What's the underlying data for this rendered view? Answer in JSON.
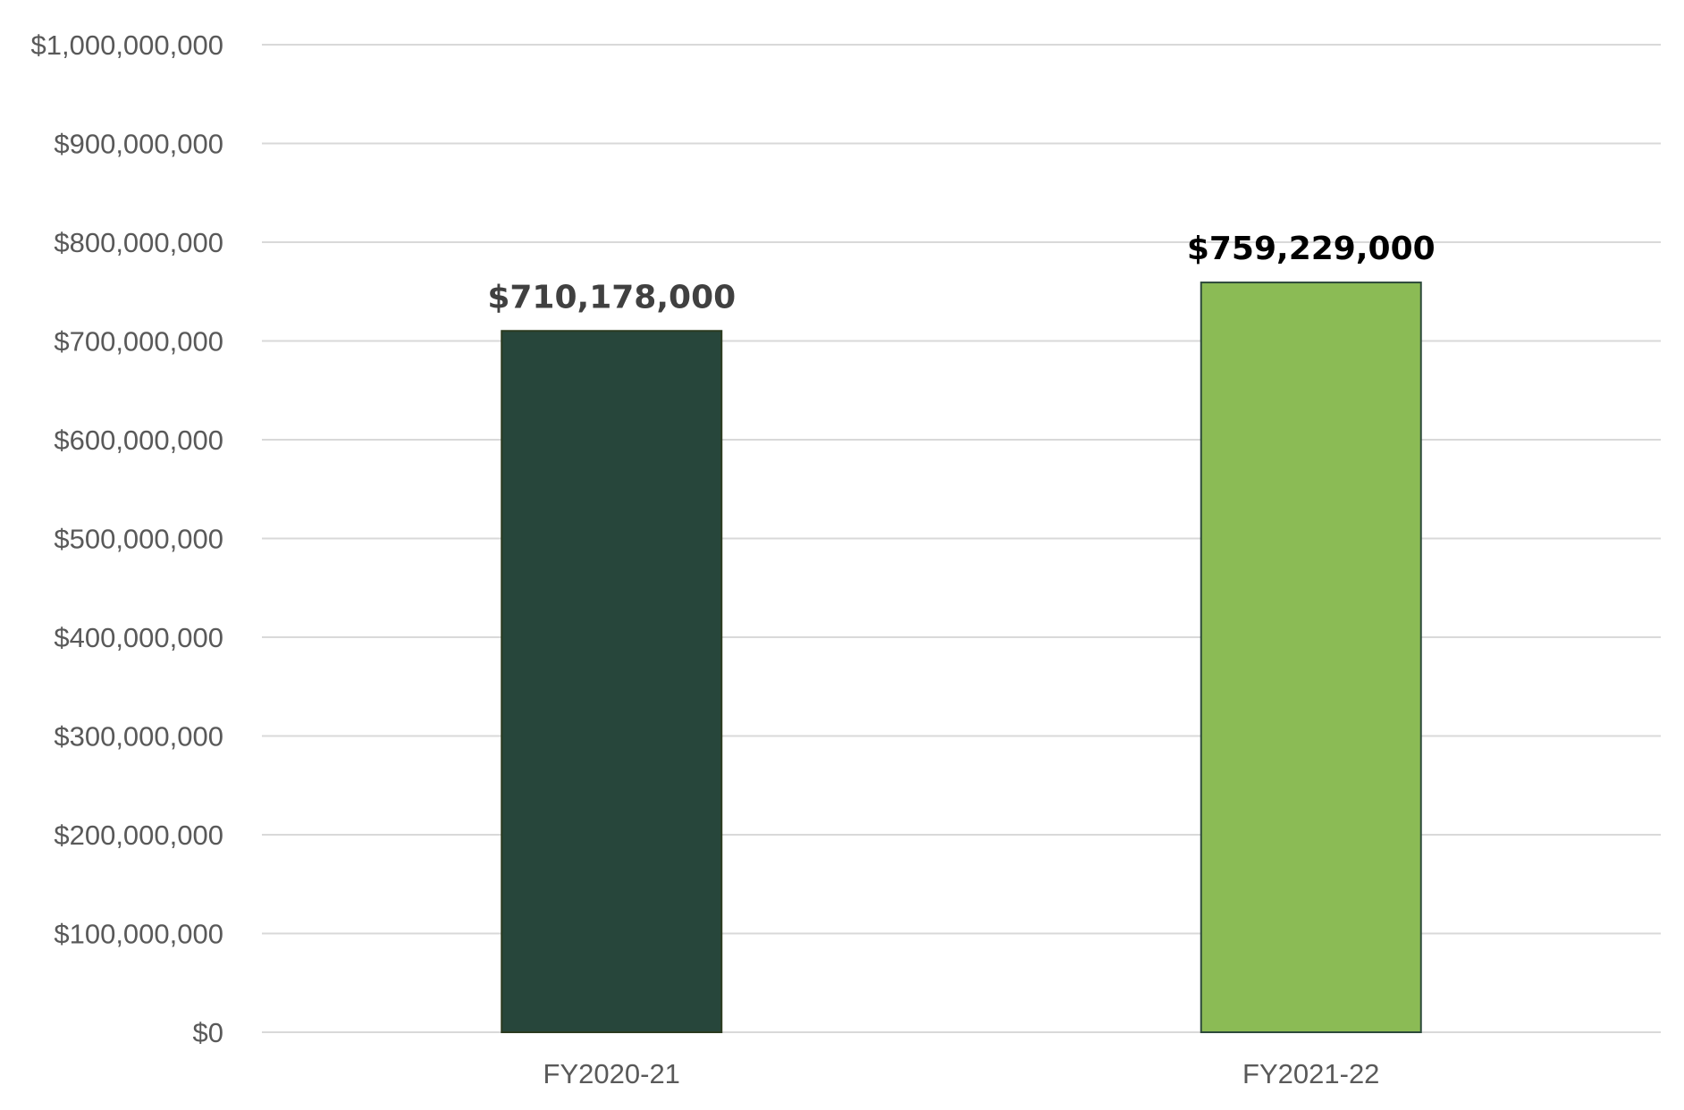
{
  "chart_data": {
    "type": "bar",
    "title": "",
    "xlabel": "",
    "ylabel": "",
    "categories": [
      "FY2020-21",
      "FY2021-22"
    ],
    "values": [
      710178000,
      759229000
    ],
    "data_labels": [
      "$710,178,000",
      "$759,229,000"
    ],
    "bar_colors": [
      "#27463b",
      "#8bbb55"
    ],
    "bar_border_colors": [
      "#2b3a1f",
      "#2d4a3b"
    ],
    "data_label_colors": [
      "#404040",
      "#000000"
    ],
    "ylim": [
      0,
      1000000000
    ],
    "y_ticks": [
      0,
      100000000,
      200000000,
      300000000,
      400000000,
      500000000,
      600000000,
      700000000,
      800000000,
      900000000,
      1000000000
    ],
    "y_tick_labels": [
      "$0",
      "$100,000,000",
      "$200,000,000",
      "$300,000,000",
      "$400,000,000",
      "$500,000,000",
      "$600,000,000",
      "$700,000,000",
      "$800,000,000",
      "$900,000,000",
      "$1,000,000,000"
    ],
    "grid": true,
    "legend": "none"
  }
}
